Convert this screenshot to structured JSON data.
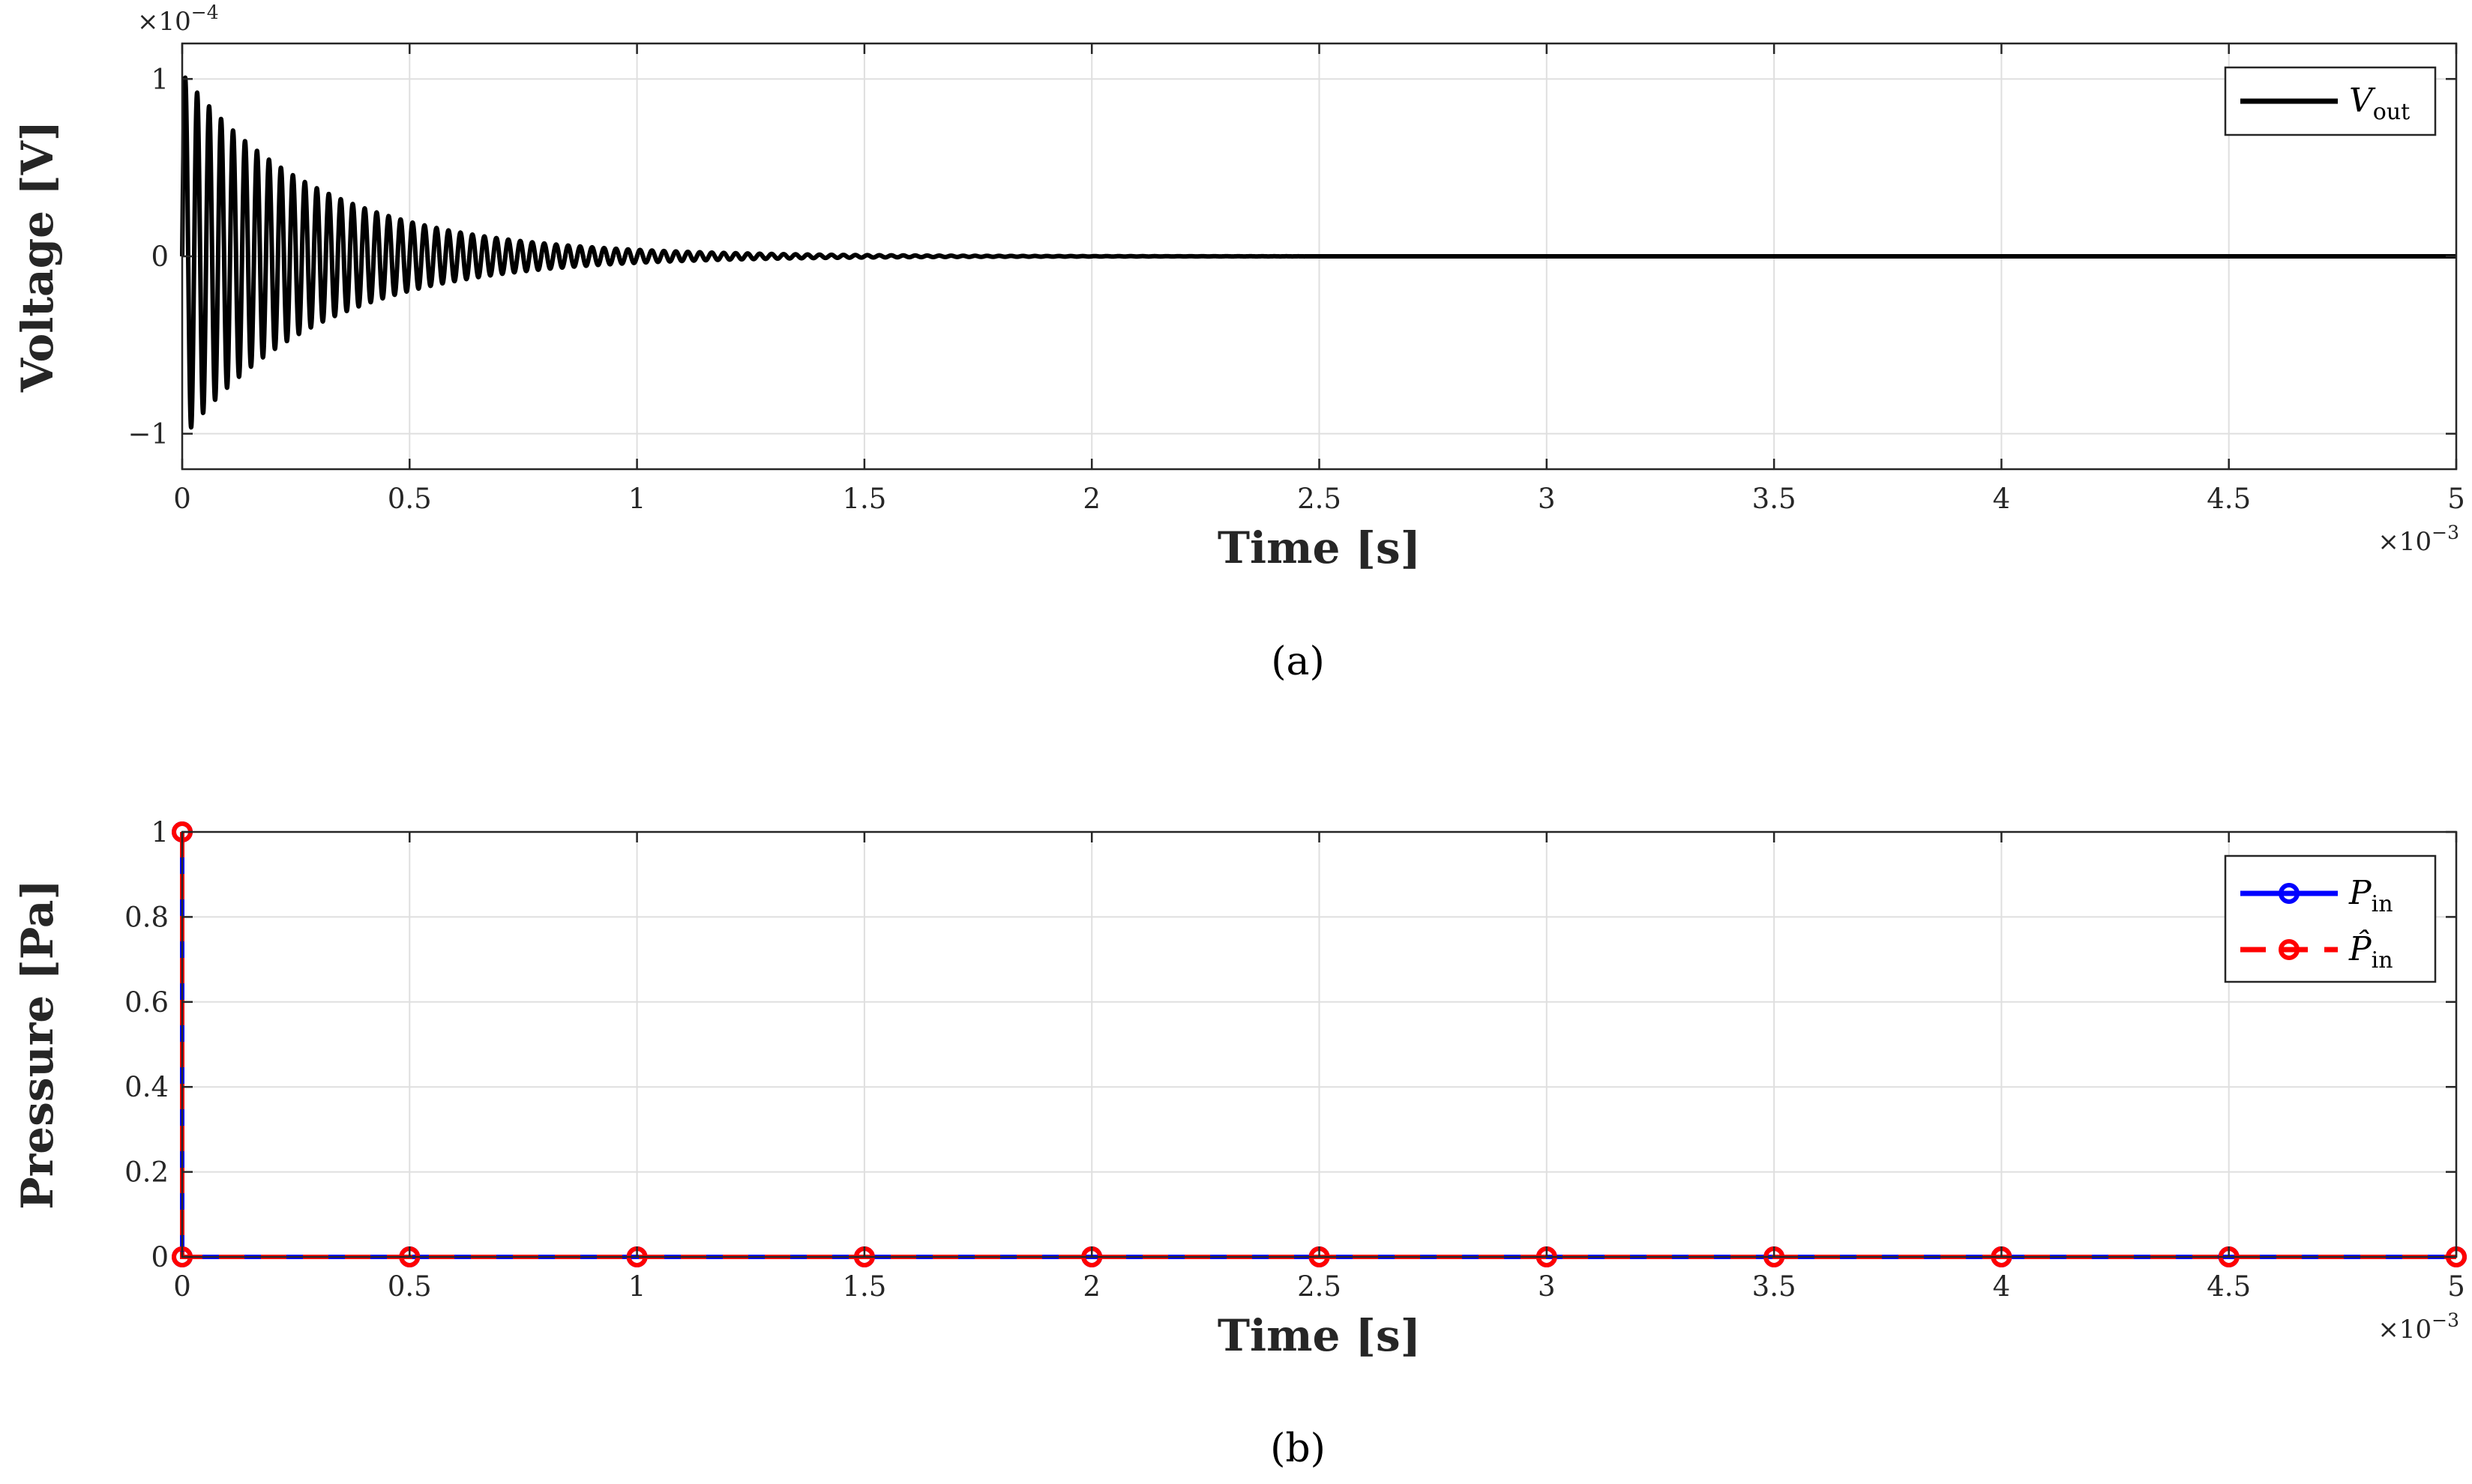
{
  "chart_data": [
    {
      "type": "line",
      "panel": "(a)",
      "xlabel": "Time [s]",
      "ylabel": "Voltage [V]",
      "x_exponent": "×10",
      "x_exponent_power": "−3",
      "y_exponent": "×10",
      "y_exponent_power": "−4",
      "xlim": [
        0,
        5
      ],
      "ylim": [
        -1.2,
        1.2
      ],
      "xticks": [
        0,
        0.5,
        1,
        1.5,
        2,
        2.5,
        3,
        3.5,
        4,
        4.5,
        5
      ],
      "xtick_labels": [
        "0",
        "0.5",
        "1",
        "1.5",
        "2",
        "2.5",
        "3",
        "3.5",
        "4",
        "4.5",
        "5"
      ],
      "yticks": [
        -1,
        0,
        1
      ],
      "ytick_labels": [
        "−1",
        "0",
        "1"
      ],
      "grid": true,
      "legend_position": "top-right",
      "series": [
        {
          "name": "V",
          "name_sub": "out",
          "color": "#000000",
          "style": "solid",
          "model": "damped sinusoid",
          "amplitude": 1.03,
          "frequency_per_ms": 38,
          "decay_time_ms": 0.3,
          "x_end": 5
        }
      ]
    },
    {
      "type": "line",
      "panel": "(b)",
      "xlabel": "Time [s]",
      "ylabel": "Pressure [Pa]",
      "x_exponent": "×10",
      "x_exponent_power": "−3",
      "xlim": [
        0,
        5
      ],
      "ylim": [
        0,
        1
      ],
      "xticks": [
        0,
        0.5,
        1,
        1.5,
        2,
        2.5,
        3,
        3.5,
        4,
        4.5,
        5
      ],
      "xtick_labels": [
        "0",
        "0.5",
        "1",
        "1.5",
        "2",
        "2.5",
        "3",
        "3.5",
        "4",
        "4.5",
        "5"
      ],
      "yticks": [
        0,
        0.2,
        0.4,
        0.6,
        0.8,
        1
      ],
      "ytick_labels": [
        "0",
        "0.2",
        "0.4",
        "0.6",
        "0.8",
        "1"
      ],
      "grid": true,
      "legend_position": "top-right",
      "series": [
        {
          "name": "P",
          "name_sub": "in",
          "color": "#0000ff",
          "style": "solid",
          "marker": "circle",
          "x": [
            0,
            0,
            0.5,
            1,
            1.5,
            2,
            2.5,
            3,
            3.5,
            4,
            4.5,
            5
          ],
          "y": [
            1,
            0,
            0,
            0,
            0,
            0,
            0,
            0,
            0,
            0,
            0,
            0
          ]
        },
        {
          "name": "P̂",
          "name_sub": "in",
          "color": "#ff0000",
          "style": "dashed",
          "marker": "circle",
          "x": [
            0,
            0,
            0.5,
            1,
            1.5,
            2,
            2.5,
            3,
            3.5,
            4,
            4.5,
            5
          ],
          "y": [
            1,
            0,
            0,
            0,
            0,
            0,
            0,
            0,
            0,
            0,
            0,
            0
          ]
        }
      ]
    }
  ]
}
